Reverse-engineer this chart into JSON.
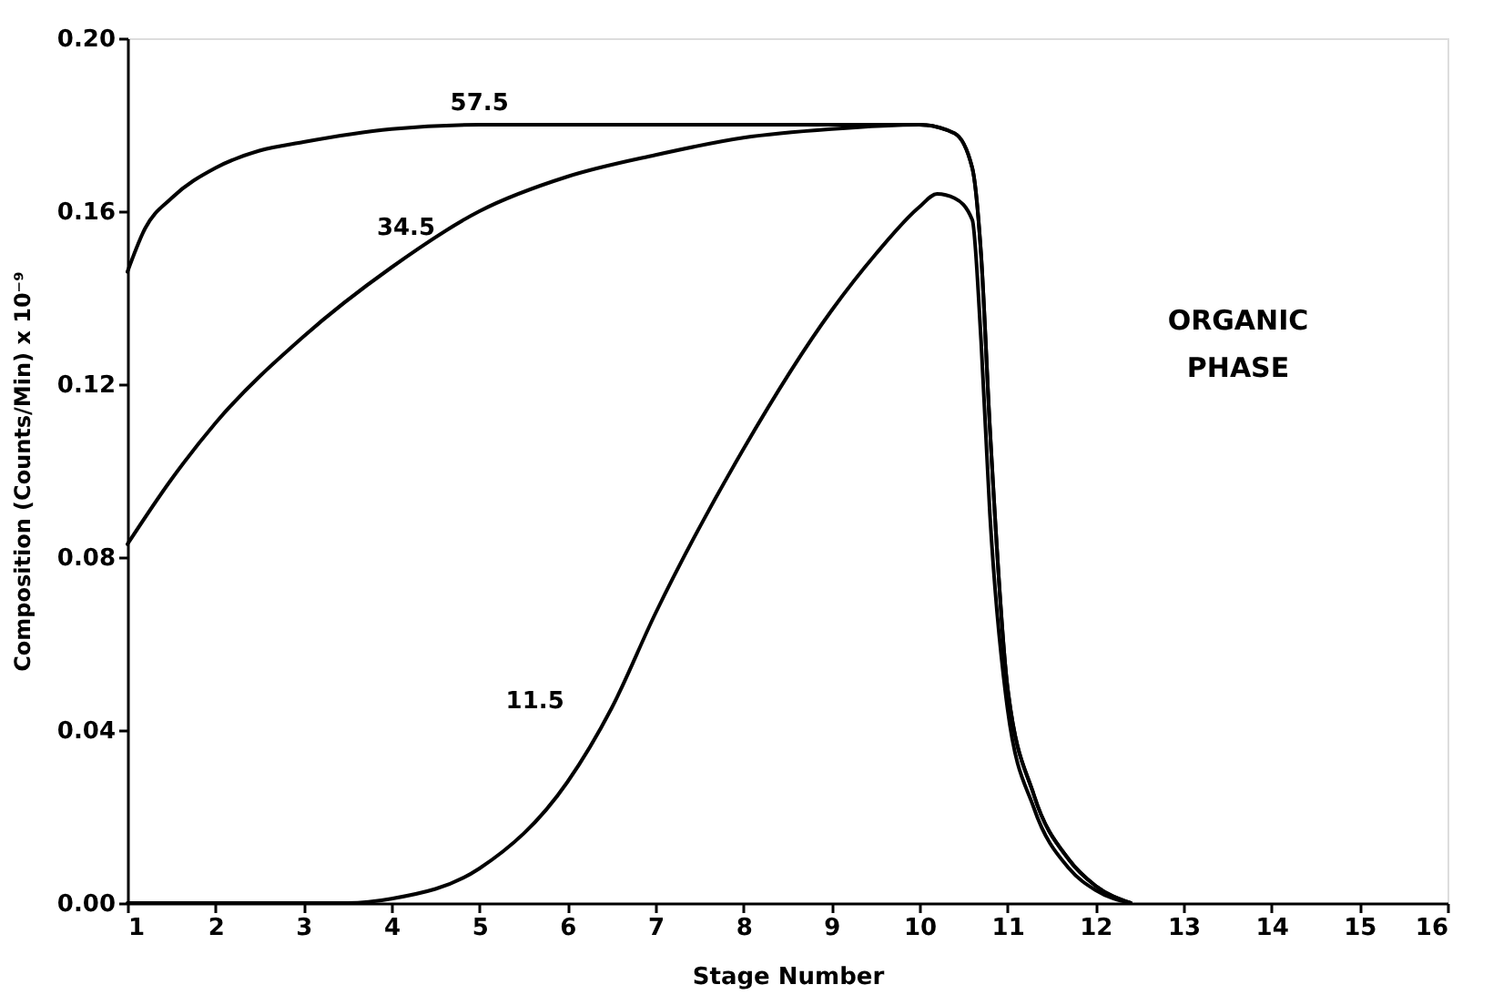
{
  "chart_data": {
    "type": "line",
    "xlabel": "Stage Number",
    "ylabel": "Composition (Counts/Min) x 10⁻⁹",
    "xlim": [
      1,
      16
    ],
    "xticks": [
      1,
      2,
      3,
      4,
      5,
      6,
      7,
      8,
      9,
      10,
      11,
      12,
      13,
      14,
      15,
      16
    ],
    "ylim": [
      0,
      0.2
    ],
    "yticks": [
      {
        "value": 0,
        "label": "0.00"
      },
      {
        "value": 0.04,
        "label": "0.04"
      },
      {
        "value": 0.08,
        "label": "0.08"
      },
      {
        "value": 0.12,
        "label": "0.12"
      },
      {
        "value": 0.16,
        "label": "0.16"
      },
      {
        "value": 0.2,
        "label": "0.20"
      }
    ],
    "grid": false,
    "marker": "none",
    "line_style": "solid",
    "series": [
      {
        "name": "57.5",
        "color": "#000000",
        "x": [
          1,
          1.2,
          1.5,
          2,
          2.5,
          3,
          4,
          5,
          6,
          8,
          10,
          10.4,
          10.6,
          10.7,
          10.8,
          11,
          11.3,
          11.7,
          12,
          12.4
        ],
        "values": [
          0.146,
          0.156,
          0.163,
          0.17,
          0.174,
          0.176,
          0.179,
          0.18,
          0.18,
          0.18,
          0.18,
          0.178,
          0.17,
          0.15,
          0.11,
          0.05,
          0.025,
          0.01,
          0.004,
          0
        ]
      },
      {
        "name": "34.5",
        "color": "#000000",
        "x": [
          1,
          1.5,
          2,
          3,
          4,
          5,
          6,
          7,
          8,
          9,
          10,
          10.4,
          10.6,
          10.7,
          10.8,
          11,
          11.3,
          11.7,
          12,
          12.4
        ],
        "values": [
          0.083,
          0.098,
          0.111,
          0.131,
          0.147,
          0.16,
          0.168,
          0.173,
          0.177,
          0.179,
          0.18,
          0.178,
          0.17,
          0.15,
          0.11,
          0.05,
          0.025,
          0.01,
          0.004,
          0
        ]
      },
      {
        "name": "11.5",
        "color": "#000000",
        "x": [
          1,
          3.5,
          4,
          5,
          6,
          6.5,
          7,
          8,
          9,
          9.5,
          10,
          10.2,
          10.4,
          10.6,
          10.7,
          10.8,
          11,
          11.3,
          11.7,
          12,
          12.4
        ],
        "values": [
          0,
          0,
          0.001,
          0.008,
          0.028,
          0.045,
          0.067,
          0.105,
          0.137,
          0.15,
          0.161,
          0.164,
          0.163,
          0.158,
          0.13,
          0.09,
          0.045,
          0.022,
          0.008,
          0.003,
          0
        ]
      }
    ],
    "annotations": [
      "ORGANIC\nPHASE"
    ]
  }
}
